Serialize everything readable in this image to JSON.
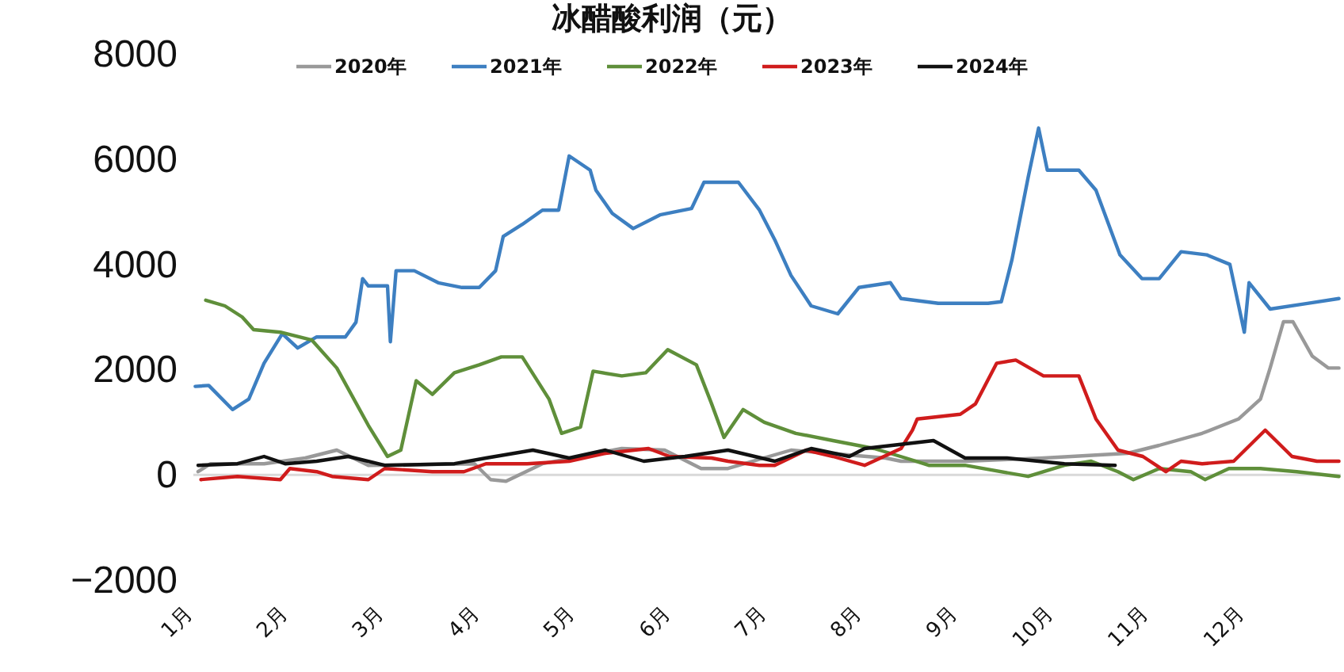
{
  "chart_data": {
    "type": "line",
    "title": "冰醋酸利润（元）",
    "legend": "top",
    "line_style": "solid",
    "ref_lines": [
      {
        "axis": "y",
        "value": 0,
        "color": "#d9d9d9"
      }
    ],
    "xlim": [
      1,
      13
    ],
    "xticks": [
      {
        "value": 1,
        "label": "1月"
      },
      {
        "value": 2,
        "label": "2月"
      },
      {
        "value": 3,
        "label": "3月"
      },
      {
        "value": 4,
        "label": "4月"
      },
      {
        "value": 5,
        "label": "5月"
      },
      {
        "value": 6,
        "label": "6月"
      },
      {
        "value": 7,
        "label": "7月"
      },
      {
        "value": 8,
        "label": "8月"
      },
      {
        "value": 9,
        "label": "9月"
      },
      {
        "value": 10,
        "label": "10月"
      },
      {
        "value": 11,
        "label": "11月"
      },
      {
        "value": 12,
        "label": "12月"
      }
    ],
    "ylim": [
      -2000,
      8000
    ],
    "yticks": [
      -2000,
      0,
      2000,
      4000,
      6000,
      8000
    ],
    "series": [
      {
        "name": "2020年",
        "color": "#999999",
        "x": [
          1.05,
          1.18,
          1.74,
          2.17,
          2.5,
          2.83,
          3.94,
          4.11,
          4.27,
          4.65,
          5.48,
          5.93,
          6.31,
          6.59,
          7.25,
          8.24,
          8.4,
          9.07,
          9.89,
          10.77,
          11.1,
          11.55,
          11.93,
          12.16,
          12.26,
          12.4,
          12.5,
          12.7,
          12.87,
          12.98
        ],
        "values": [
          60,
          210,
          210,
          320,
          470,
          180,
          210,
          -90,
          -120,
          210,
          500,
          470,
          120,
          120,
          470,
          320,
          260,
          260,
          320,
          410,
          560,
          790,
          1060,
          1440,
          2030,
          2910,
          2910,
          2260,
          2030,
          2030
        ]
      },
      {
        "name": "2021年",
        "color": "#3d7fc1",
        "x": [
          1.02,
          1.16,
          1.41,
          1.58,
          1.74,
          1.93,
          2.09,
          2.29,
          2.59,
          2.7,
          2.77,
          2.83,
          3.03,
          3.06,
          3.12,
          3.31,
          3.56,
          3.81,
          3.99,
          4.16,
          4.24,
          4.44,
          4.65,
          4.82,
          4.93,
          5.15,
          5.21,
          5.38,
          5.6,
          5.88,
          6.21,
          6.34,
          6.7,
          6.92,
          7.08,
          7.25,
          7.46,
          7.74,
          7.96,
          8.29,
          8.4,
          8.79,
          9.31,
          9.45,
          9.56,
          9.73,
          9.84,
          9.93,
          10.26,
          10.44,
          10.69,
          10.92,
          11.1,
          11.33,
          11.6,
          11.84,
          11.99,
          12.04,
          12.26,
          12.65,
          12.98
        ],
        "values": [
          1680,
          1700,
          1240,
          1440,
          2120,
          2680,
          2410,
          2620,
          2620,
          2900,
          3730,
          3590,
          3590,
          2530,
          3880,
          3880,
          3650,
          3560,
          3560,
          3880,
          4530,
          4760,
          5030,
          5030,
          6060,
          5790,
          5410,
          4970,
          4680,
          4940,
          5060,
          5560,
          5560,
          5030,
          4470,
          3790,
          3210,
          3060,
          3560,
          3650,
          3350,
          3260,
          3260,
          3290,
          4090,
          5650,
          6590,
          5790,
          5790,
          5410,
          4180,
          3730,
          3730,
          4240,
          4180,
          4000,
          2710,
          3650,
          3150,
          3260,
          3350
        ]
      },
      {
        "name": "2022年",
        "color": "#5f8f3a",
        "x": [
          1.13,
          1.33,
          1.51,
          1.63,
          1.91,
          2.24,
          2.5,
          2.83,
          3.03,
          3.17,
          3.33,
          3.5,
          3.73,
          3.99,
          4.22,
          4.44,
          4.72,
          4.85,
          5.05,
          5.18,
          5.48,
          5.73,
          5.96,
          6.26,
          6.42,
          6.55,
          6.75,
          6.97,
          7.3,
          7.69,
          8.12,
          8.45,
          8.69,
          9.07,
          9.73,
          10.11,
          10.39,
          10.67,
          10.83,
          11.1,
          11.43,
          11.58,
          11.83,
          12.16,
          12.54,
          12.98
        ],
        "values": [
          3320,
          3210,
          3000,
          2760,
          2710,
          2560,
          2030,
          940,
          350,
          470,
          1790,
          1530,
          1940,
          2090,
          2240,
          2240,
          1440,
          790,
          910,
          1970,
          1880,
          1940,
          2380,
          2090,
          1350,
          710,
          1240,
          1000,
          790,
          650,
          500,
          320,
          180,
          180,
          -30,
          180,
          260,
          60,
          -90,
          120,
          60,
          -90,
          120,
          120,
          60,
          -30
        ]
      },
      {
        "name": "2023年",
        "color": "#d01c1c",
        "x": [
          1.08,
          1.46,
          1.91,
          2.01,
          2.29,
          2.45,
          2.83,
          3.0,
          3.5,
          3.83,
          4.06,
          4.49,
          4.93,
          5.31,
          5.76,
          5.98,
          6.42,
          6.59,
          6.92,
          7.08,
          7.41,
          7.69,
          8.02,
          8.4,
          8.52,
          8.57,
          9.02,
          9.18,
          9.4,
          9.6,
          9.89,
          10.26,
          10.44,
          10.67,
          10.93,
          11.17,
          11.33,
          11.55,
          11.88,
          12.21,
          12.49,
          12.75,
          12.98
        ],
        "values": [
          -90,
          -30,
          -90,
          120,
          60,
          -30,
          -90,
          120,
          60,
          60,
          210,
          210,
          260,
          410,
          500,
          350,
          320,
          260,
          180,
          180,
          470,
          350,
          180,
          500,
          850,
          1060,
          1150,
          1350,
          2120,
          2180,
          1880,
          1880,
          1060,
          470,
          350,
          60,
          260,
          210,
          260,
          850,
          350,
          260,
          260
        ]
      },
      {
        "name": "2024年",
        "color": "#111111",
        "x": [
          1.05,
          1.46,
          1.74,
          1.96,
          2.29,
          2.62,
          3.0,
          3.73,
          4.06,
          4.55,
          4.93,
          5.31,
          5.71,
          6.14,
          6.59,
          7.08,
          7.46,
          7.86,
          8.02,
          8.74,
          9.07,
          9.51,
          10.11,
          10.64
        ],
        "values": [
          180,
          210,
          350,
          210,
          260,
          350,
          180,
          210,
          320,
          470,
          320,
          470,
          260,
          350,
          470,
          260,
          500,
          350,
          500,
          650,
          320,
          320,
          210,
          180
        ]
      }
    ]
  }
}
